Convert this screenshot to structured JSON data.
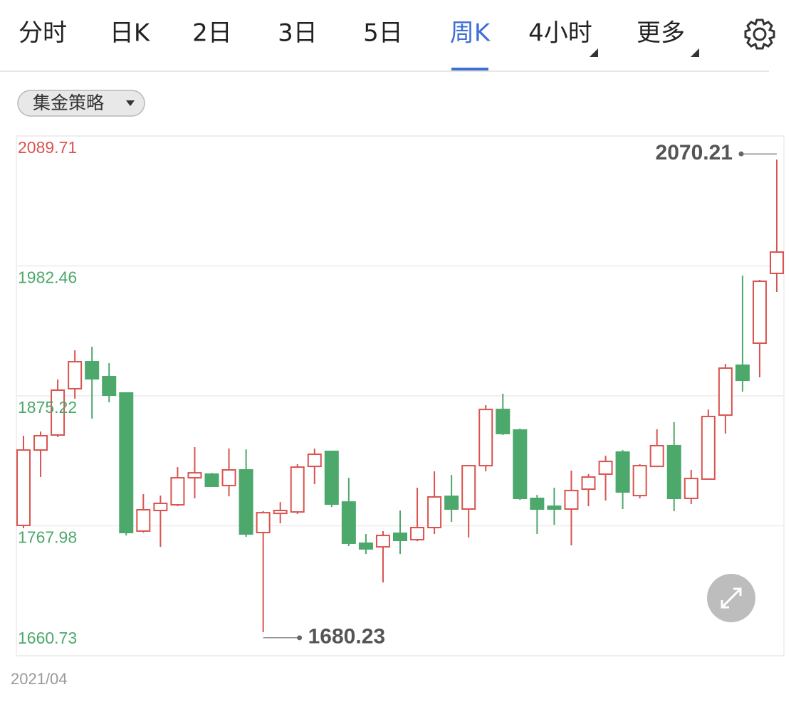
{
  "tabs": [
    "分时",
    "日K",
    "2日",
    "3日",
    "5日",
    "周K",
    "4小时",
    "更多"
  ],
  "active_tab": 5,
  "strategy": "集金策略",
  "chart_data": {
    "type": "candlestick",
    "x_start_label": "2021/04",
    "up_color": "#d9534f",
    "down_color": "#4ca86b",
    "ylim": [
      1660.73,
      2089.71
    ],
    "yticks": [
      2089.71,
      1982.46,
      1875.22,
      1767.98,
      1660.73
    ],
    "grid": true,
    "open": [
      1768.3,
      1830.5,
      1842.9,
      1881.1,
      1903.4,
      1891.1,
      1877.6,
      1763.6,
      1780.6,
      1785.3,
      1807.6,
      1810.6,
      1801.2,
      1814.1,
      1762.4,
      1778.2,
      1779.4,
      1817.0,
      1829.4,
      1787.6,
      1753.6,
      1750.6,
      1761.8,
      1756.5,
      1766.5,
      1792.3,
      1781.8,
      1817.6,
      1864.0,
      1847.0,
      1790.6,
      1784.1,
      1781.8,
      1798.2,
      1810.6,
      1828.8,
      1792.9,
      1817.0,
      1834.1,
      1790.6,
      1806.5,
      1859.3,
      1900.5,
      1918.7,
      1976.3
    ],
    "high": [
      1842.3,
      1845.8,
      1888.7,
      1912.8,
      1915.8,
      1902.2,
      1877.6,
      1794.1,
      1792.9,
      1816.4,
      1832.9,
      1811.7,
      1831.7,
      1831.1,
      1780.0,
      1787.6,
      1818.8,
      1831.7,
      1829.4,
      1807.6,
      1761.2,
      1763.6,
      1780.6,
      1799.4,
      1812.9,
      1810.0,
      1818.2,
      1867.6,
      1877.0,
      1848.2,
      1793.5,
      1799.4,
      1813.5,
      1810.6,
      1825.8,
      1830.5,
      1818.8,
      1847.6,
      1853.5,
      1814.1,
      1864.0,
      1901.7,
      1974.5,
      1971.0,
      2070.21
    ],
    "low": [
      1765.9,
      1808.2,
      1841.1,
      1872.9,
      1856.4,
      1869.9,
      1760.0,
      1762.4,
      1750.6,
      1784.1,
      1790.6,
      1800.0,
      1792.3,
      1758.9,
      1680.23,
      1770.0,
      1777.7,
      1802.3,
      1783.5,
      1751.2,
      1744.7,
      1721.2,
      1744.7,
      1755.3,
      1761.2,
      1771.2,
      1758.3,
      1812.9,
      1842.9,
      1789.4,
      1761.2,
      1768.8,
      1751.8,
      1784.1,
      1788.8,
      1781.8,
      1790.6,
      1816.4,
      1780.0,
      1785.9,
      1805.9,
      1844.1,
      1878.7,
      1890.5,
      1961.0
    ],
    "close": [
      1830.5,
      1842.3,
      1879.9,
      1903.4,
      1889.3,
      1875.8,
      1762.4,
      1781.2,
      1786.5,
      1807.6,
      1811.7,
      1800.6,
      1814.1,
      1761.2,
      1778.8,
      1780.6,
      1816.4,
      1827.0,
      1785.9,
      1753.6,
      1748.9,
      1760.0,
      1755.9,
      1766.5,
      1791.8,
      1781.8,
      1817.6,
      1864.0,
      1844.1,
      1790.6,
      1781.8,
      1781.8,
      1797.1,
      1808.2,
      1821.1,
      1795.9,
      1817.6,
      1834.1,
      1790.6,
      1807.0,
      1858.2,
      1898.1,
      1888.1,
      1969.8,
      1993.9
    ]
  }
}
